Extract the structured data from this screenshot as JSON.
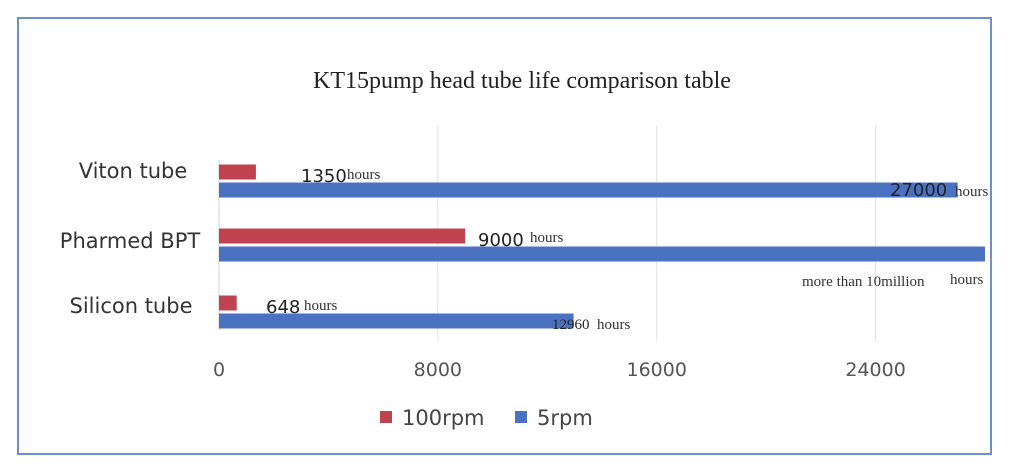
{
  "chart_data": {
    "type": "bar",
    "orientation": "horizontal",
    "title": "KT15pump head tube life comparison table",
    "categories": [
      "Viton tube",
      "Pharmed BPT",
      "Silicon tube"
    ],
    "series": [
      {
        "name": "100rpm",
        "color": "#c0444f",
        "values": [
          1350,
          9000,
          648
        ],
        "labels": [
          {
            "value": "1350",
            "unit": "hours"
          },
          {
            "value": "9000",
            "unit": "hours"
          },
          {
            "value": "648",
            "unit": "hours"
          }
        ]
      },
      {
        "name": "5rpm",
        "color": "#4a72c0",
        "values": [
          27000,
          28000,
          12960
        ],
        "labels": [
          {
            "value": "27000",
            "unit": "hours"
          },
          {
            "value": "",
            "note": "more than 10million",
            "unit": "hours"
          },
          {
            "value": "12960",
            "unit": "hours"
          }
        ]
      }
    ],
    "xlim": [
      0,
      28000
    ],
    "xticks": [
      "0",
      "8000",
      "16000",
      "24000"
    ],
    "xtick_values": [
      0,
      8000,
      16000,
      24000
    ],
    "grid": true,
    "legend": "bottom"
  }
}
